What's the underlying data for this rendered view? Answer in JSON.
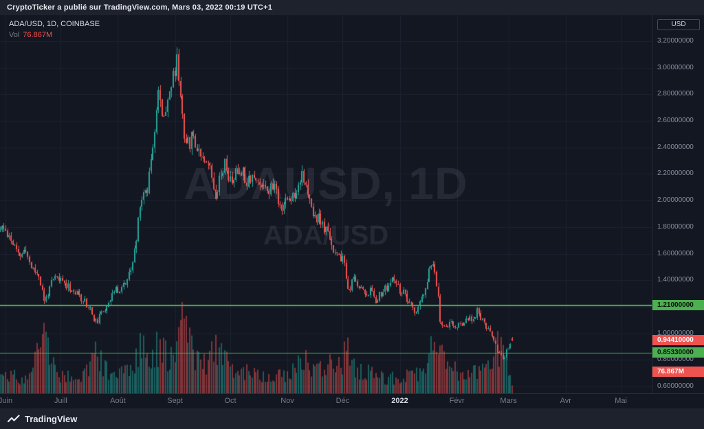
{
  "attribution": {
    "text": "CryptoTicker a publié sur TradingView.com, Mars 03, 2022 00:19 UTC+1"
  },
  "legend": {
    "symbol_line": "ADA/USD, 1D, COINBASE",
    "vol_label": "Vol",
    "vol_value": "76.867M"
  },
  "watermark": {
    "line1": "ADAUSD, 1D",
    "line2": "ADA/USD"
  },
  "footer": {
    "brand": "TradingView"
  },
  "colors": {
    "background": "#131722",
    "panel": "#1e222d",
    "grid": "#1d2231",
    "up": "#26a69a",
    "down": "#ef5350",
    "level_green": "#4caf50",
    "axis_text": "#8a90a0",
    "text": "#d1d4dc"
  },
  "chart_data": {
    "type": "candlestick",
    "symbol": "ADA/USD",
    "interval": "1D",
    "exchange": "COINBASE",
    "currency": "USD",
    "price_decimals": 8,
    "y_ticks": [
      3.2,
      3.0,
      2.8,
      2.6,
      2.4,
      2.2,
      2.0,
      1.8,
      1.6,
      1.4,
      1.2,
      1.0,
      0.8,
      0.6
    ],
    "x_labels": [
      {
        "label": "Juin",
        "day": 0
      },
      {
        "label": "Juill",
        "day": 30
      },
      {
        "label": "Août",
        "day": 61
      },
      {
        "label": "Sept",
        "day": 92
      },
      {
        "label": "Oct",
        "day": 122
      },
      {
        "label": "Nov",
        "day": 153
      },
      {
        "label": "Déc",
        "day": 183
      },
      {
        "label": "2022",
        "day": 214,
        "year": true
      },
      {
        "label": "Févr",
        "day": 245
      },
      {
        "label": "Mars",
        "day": 273
      },
      {
        "label": "Avr",
        "day": 304
      },
      {
        "label": "Mai",
        "day": 334
      }
    ],
    "levels": [
      {
        "price": 1.21,
        "label": "1.21000000",
        "color": "#4caf50",
        "thickness": 2
      },
      {
        "price": 0.8533,
        "label": "0.85330000",
        "color": "#4caf50",
        "thickness": 1
      }
    ],
    "last": {
      "price": 0.9441,
      "label": "0.94410000",
      "direction": "down"
    },
    "volume": {
      "value_m": 76.867,
      "label": "76.867M"
    },
    "price_anchors": [
      [
        0,
        1.78
      ],
      [
        4,
        1.68
      ],
      [
        7,
        1.58
      ],
      [
        11,
        1.62
      ],
      [
        14,
        1.5
      ],
      [
        18,
        1.44
      ],
      [
        21,
        1.24
      ],
      [
        24,
        1.34
      ],
      [
        27,
        1.42
      ],
      [
        30,
        1.4
      ],
      [
        34,
        1.36
      ],
      [
        38,
        1.3
      ],
      [
        42,
        1.26
      ],
      [
        46,
        1.18
      ],
      [
        49,
        1.08
      ],
      [
        52,
        1.14
      ],
      [
        55,
        1.22
      ],
      [
        58,
        1.3
      ],
      [
        61,
        1.33
      ],
      [
        65,
        1.38
      ],
      [
        68,
        1.46
      ],
      [
        71,
        1.7
      ],
      [
        73,
        2.0
      ],
      [
        75,
        2.05
      ],
      [
        77,
        2.1
      ],
      [
        80,
        2.45
      ],
      [
        83,
        2.82
      ],
      [
        85,
        2.62
      ],
      [
        88,
        2.78
      ],
      [
        91,
        2.92
      ],
      [
        93,
        3.06
      ],
      [
        95,
        2.8
      ],
      [
        97,
        2.52
      ],
      [
        99,
        2.42
      ],
      [
        102,
        2.5
      ],
      [
        104,
        2.4
      ],
      [
        107,
        2.35
      ],
      [
        110,
        2.3
      ],
      [
        112,
        2.18
      ],
      [
        114,
        2.06
      ],
      [
        117,
        2.22
      ],
      [
        119,
        2.28
      ],
      [
        122,
        2.14
      ],
      [
        125,
        2.2
      ],
      [
        128,
        2.24
      ],
      [
        131,
        2.16
      ],
      [
        134,
        2.2
      ],
      [
        137,
        2.12
      ],
      [
        140,
        2.14
      ],
      [
        143,
        2.08
      ],
      [
        146,
        2.12
      ],
      [
        149,
        1.96
      ],
      [
        153,
        2.0
      ],
      [
        156,
        2.04
      ],
      [
        159,
        2.12
      ],
      [
        161,
        2.24
      ],
      [
        164,
        2.02
      ],
      [
        167,
        1.9
      ],
      [
        170,
        1.86
      ],
      [
        173,
        1.78
      ],
      [
        176,
        1.74
      ],
      [
        178,
        1.62
      ],
      [
        181,
        1.56
      ],
      [
        183,
        1.58
      ],
      [
        186,
        1.32
      ],
      [
        189,
        1.4
      ],
      [
        192,
        1.36
      ],
      [
        195,
        1.3
      ],
      [
        198,
        1.32
      ],
      [
        201,
        1.26
      ],
      [
        204,
        1.3
      ],
      [
        207,
        1.34
      ],
      [
        210,
        1.4
      ],
      [
        213,
        1.34
      ],
      [
        216,
        1.3
      ],
      [
        219,
        1.22
      ],
      [
        222,
        1.16
      ],
      [
        225,
        1.22
      ],
      [
        228,
        1.32
      ],
      [
        231,
        1.54
      ],
      [
        233,
        1.46
      ],
      [
        235,
        1.28
      ],
      [
        236,
        1.1
      ],
      [
        238,
        1.04
      ],
      [
        241,
        1.08
      ],
      [
        244,
        1.04
      ],
      [
        247,
        1.06
      ],
      [
        250,
        1.12
      ],
      [
        253,
        1.1
      ],
      [
        256,
        1.17
      ],
      [
        258,
        1.12
      ],
      [
        260,
        1.06
      ],
      [
        262,
        1.02
      ],
      [
        264,
        0.98
      ],
      [
        266,
        0.94
      ],
      [
        267,
        0.86
      ],
      [
        269,
        0.84
      ],
      [
        271,
        0.8
      ],
      [
        272,
        0.86
      ],
      [
        273,
        0.9
      ],
      [
        274,
        0.92
      ],
      [
        275,
        0.9441
      ]
    ],
    "volume_anchors": [
      [
        0,
        180
      ],
      [
        8,
        150
      ],
      [
        14,
        160
      ],
      [
        21,
        620
      ],
      [
        25,
        340
      ],
      [
        30,
        190
      ],
      [
        36,
        160
      ],
      [
        42,
        170
      ],
      [
        49,
        380
      ],
      [
        54,
        230
      ],
      [
        61,
        190
      ],
      [
        68,
        260
      ],
      [
        73,
        420
      ],
      [
        78,
        360
      ],
      [
        83,
        460
      ],
      [
        88,
        380
      ],
      [
        93,
        560
      ],
      [
        97,
        650
      ],
      [
        101,
        420
      ],
      [
        106,
        350
      ],
      [
        110,
        320
      ],
      [
        114,
        430
      ],
      [
        119,
        300
      ],
      [
        124,
        250
      ],
      [
        130,
        210
      ],
      [
        136,
        180
      ],
      [
        142,
        170
      ],
      [
        148,
        190
      ],
      [
        153,
        200
      ],
      [
        158,
        240
      ],
      [
        161,
        330
      ],
      [
        165,
        260
      ],
      [
        170,
        220
      ],
      [
        175,
        250
      ],
      [
        179,
        300
      ],
      [
        183,
        280
      ],
      [
        186,
        500
      ],
      [
        190,
        260
      ],
      [
        196,
        200
      ],
      [
        202,
        160
      ],
      [
        208,
        150
      ],
      [
        214,
        140
      ],
      [
        220,
        170
      ],
      [
        226,
        180
      ],
      [
        231,
        400
      ],
      [
        234,
        360
      ],
      [
        236,
        540
      ],
      [
        240,
        300
      ],
      [
        245,
        220
      ],
      [
        250,
        200
      ],
      [
        256,
        190
      ],
      [
        260,
        210
      ],
      [
        264,
        260
      ],
      [
        267,
        480
      ],
      [
        270,
        380
      ],
      [
        273,
        240
      ],
      [
        275,
        77
      ]
    ],
    "days": 276,
    "seed": 11
  }
}
